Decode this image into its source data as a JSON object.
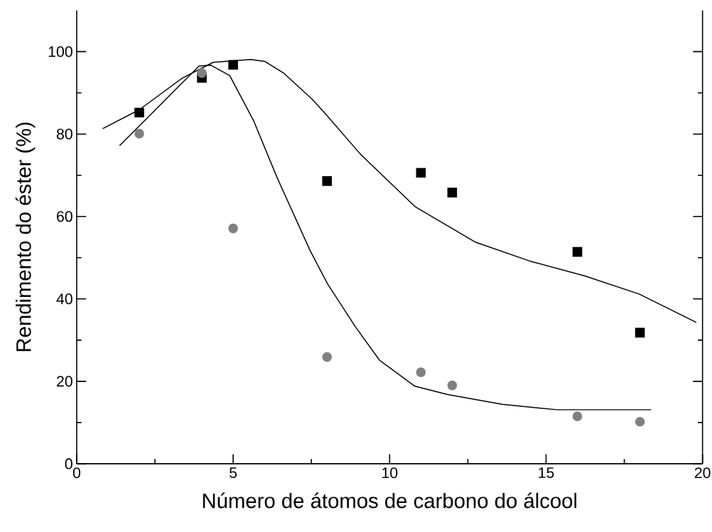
{
  "chart_data": {
    "type": "scatter",
    "xlabel": "Número de átomos de carbono do álcool",
    "ylabel": "Rendimento do éster (%)",
    "xlim": [
      0,
      20
    ],
    "ylim": [
      0,
      110
    ],
    "xticks": [
      0,
      5,
      10,
      15,
      20
    ],
    "yticks": [
      0,
      20,
      40,
      60,
      80,
      100
    ],
    "grid": false,
    "series": [
      {
        "marker": "square",
        "color": "#000000",
        "x": [
          2,
          4,
          5,
          8,
          11,
          12,
          16,
          18
        ],
        "values": [
          85.2,
          93.6,
          96.8,
          68.6,
          70.6,
          65.8,
          51.4,
          31.8
        ]
      },
      {
        "marker": "circle",
        "color": "#808080",
        "x": [
          2,
          4,
          5,
          8,
          11,
          12,
          16,
          18
        ],
        "values": [
          80.1,
          94.8,
          57.1,
          25.9,
          22.2,
          19.0,
          11.5,
          10.2
        ]
      },
      {
        "type": "line",
        "color": "#000000",
        "x": [
          0.83,
          2.0,
          3.38,
          4.36,
          5.56,
          6.02,
          6.63,
          7.53,
          7.94,
          9.07,
          10.81,
          12.73,
          14.47,
          16.22,
          17.97,
          19.8
        ],
        "values": [
          81.3,
          85.9,
          93.6,
          97.4,
          98.1,
          97.6,
          94.7,
          88.4,
          85.0,
          75.1,
          62.4,
          53.8,
          49.2,
          45.6,
          41.2,
          34.3
        ]
      },
      {
        "type": "line",
        "color": "#000000",
        "x": [
          1.37,
          2.24,
          3.3,
          3.91,
          4.29,
          4.89,
          5.65,
          6.4,
          7.46,
          8.02,
          8.9,
          9.68,
          10.81,
          11.86,
          13.6,
          15.35,
          18.36
        ],
        "values": [
          77.2,
          83.8,
          91.9,
          96.5,
          96.7,
          94.2,
          83.3,
          69.5,
          51.7,
          43.6,
          33.3,
          25.1,
          18.8,
          16.8,
          14.4,
          13.1,
          13.1
        ]
      }
    ]
  }
}
